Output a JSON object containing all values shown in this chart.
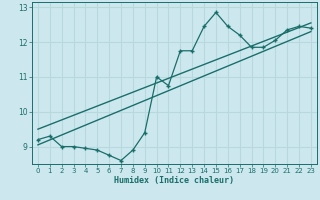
{
  "xlabel": "Humidex (Indice chaleur)",
  "bg_color": "#cce8ee",
  "line_color": "#1a6e6a",
  "grid_color": "#b8d8de",
  "xlim": [
    -0.5,
    23.5
  ],
  "ylim": [
    8.5,
    13.15
  ],
  "xticks": [
    0,
    1,
    2,
    3,
    4,
    5,
    6,
    7,
    8,
    9,
    10,
    11,
    12,
    13,
    14,
    15,
    16,
    17,
    18,
    19,
    20,
    21,
    22,
    23
  ],
  "yticks": [
    9,
    10,
    11,
    12,
    13
  ],
  "curve_x": [
    0,
    1,
    2,
    3,
    4,
    5,
    6,
    7,
    8,
    9,
    10,
    11,
    12,
    13,
    14,
    15,
    16,
    17,
    18,
    19,
    20,
    21,
    22,
    23
  ],
  "curve_y": [
    9.2,
    9.3,
    9.0,
    9.0,
    8.95,
    8.9,
    8.75,
    8.6,
    8.9,
    9.4,
    11.0,
    10.75,
    11.75,
    11.75,
    12.45,
    12.85,
    12.45,
    12.2,
    11.85,
    11.85,
    12.05,
    12.35,
    12.45,
    12.4
  ],
  "line1_x": [
    0,
    23
  ],
  "line1_y": [
    9.05,
    12.3
  ],
  "line2_x": [
    0,
    23
  ],
  "line2_y": [
    9.5,
    12.55
  ]
}
